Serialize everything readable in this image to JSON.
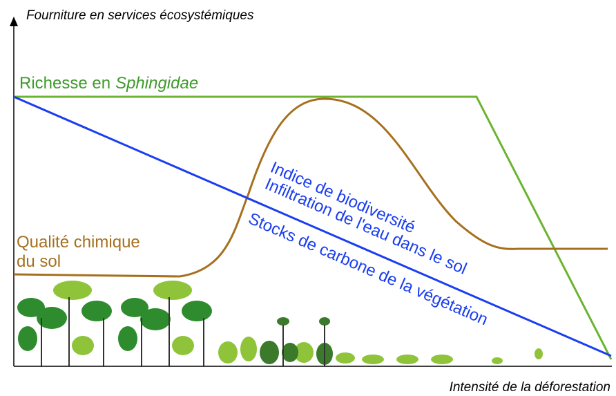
{
  "axes": {
    "y_label": "Fourniture en services écosystémiques",
    "x_label": "Intensité de la déforestation"
  },
  "curves": {
    "sphingidae": {
      "label": "Richesse en",
      "label_italic": "Sphingidae"
    },
    "soil": {
      "label_lines": [
        "Qualité chimique",
        "du sol"
      ]
    },
    "blue": {
      "labels": [
        "Indice de biodiversité",
        "Infiltration de l'eau dans le sol",
        "Stocks de carbone de la végétation"
      ]
    }
  }
}
